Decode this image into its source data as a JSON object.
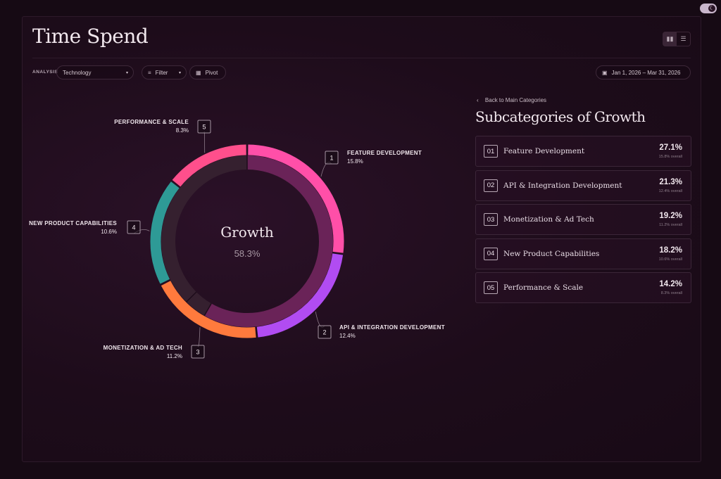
{
  "app": {
    "title": "Time Spend"
  },
  "view_toggle": {
    "icons": [
      "bar-chart-icon",
      "table-icon"
    ],
    "active": 0
  },
  "toolbar": {
    "analysis_label": "ANALYSIS",
    "analysis_value": "Technology",
    "filter_label": "Filter",
    "pivot_label": "Pivot",
    "date_range": "Jan 1, 2026 – Mar 31, 2026"
  },
  "panel": {
    "back_label": "Back to Main Categories",
    "title": "Subcategories of Growth",
    "items": [
      {
        "num": "01",
        "name": "Feature Development",
        "pct": "27.1%",
        "overall": "15.8% overall"
      },
      {
        "num": "02",
        "name": "API & Integration Development",
        "pct": "21.3%",
        "overall": "12.4% overall"
      },
      {
        "num": "03",
        "name": "Monetization & Ad Tech",
        "pct": "19.2%",
        "overall": "11.2% overall"
      },
      {
        "num": "04",
        "name": "New Product Capabilities",
        "pct": "18.2%",
        "overall": "10.6% overall"
      },
      {
        "num": "05",
        "name": "Performance & Scale",
        "pct": "14.2%",
        "overall": "8.3% overall"
      }
    ]
  },
  "chart_data": {
    "type": "pie",
    "center_title": "Growth",
    "center_value": "58.3%",
    "slices": [
      {
        "num": "1",
        "label": "FEATURE DEVELOPMENT",
        "value": 15.8,
        "value_label": "15.8%",
        "color": "#ff4fa8"
      },
      {
        "num": "2",
        "label": "API & INTEGRATION DEVELOPMENT",
        "value": 12.4,
        "value_label": "12.4%",
        "color": "#b14cf2"
      },
      {
        "num": "3",
        "label": "MONETIZATION & AD TECH",
        "value": 11.2,
        "value_label": "11.2%",
        "color": "#ff7a3d"
      },
      {
        "num": "4",
        "label": "NEW PRODUCT CAPABILITIES",
        "value": 10.6,
        "value_label": "10.6%",
        "color": "#2e9a96"
      },
      {
        "num": "5",
        "label": "PERFORMANCE & SCALE",
        "value": 8.3,
        "value_label": "8.3%",
        "color": "#ff4f8c"
      }
    ],
    "inner_ring": {
      "highlight_value": 58.3,
      "highlight_color": "#6a2358",
      "rest_color": "#35202f"
    }
  }
}
